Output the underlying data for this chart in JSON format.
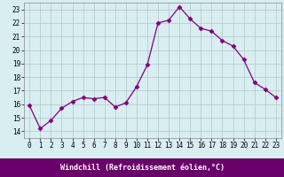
{
  "x": [
    0,
    1,
    2,
    3,
    4,
    5,
    6,
    7,
    8,
    9,
    10,
    11,
    12,
    13,
    14,
    15,
    16,
    17,
    18,
    19,
    20,
    21,
    22,
    23
  ],
  "y": [
    15.9,
    14.2,
    14.8,
    15.7,
    16.2,
    16.5,
    16.4,
    16.5,
    15.8,
    16.1,
    17.3,
    18.9,
    22.0,
    22.2,
    23.2,
    22.3,
    21.6,
    21.4,
    20.7,
    20.3,
    19.3,
    17.6,
    17.1,
    16.5
  ],
  "line_color": "#800080",
  "marker": "D",
  "marker_size": 2.5,
  "bg_color": "#d8eef0",
  "grid_color": "#b0c8cc",
  "xlim": [
    -0.5,
    23.5
  ],
  "ylim": [
    13.5,
    23.5
  ],
  "yticks": [
    14,
    15,
    16,
    17,
    18,
    19,
    20,
    21,
    22,
    23
  ],
  "xticks": [
    0,
    1,
    2,
    3,
    4,
    5,
    6,
    7,
    8,
    9,
    10,
    11,
    12,
    13,
    14,
    15,
    16,
    17,
    18,
    19,
    20,
    21,
    22,
    23
  ],
  "xlabel": "Windchill (Refroidissement éolien,°C)",
  "xlabel_bg": "#6a006a",
  "xlabel_color": "white",
  "tick_fontsize": 5.5,
  "xlabel_fontsize": 6.0
}
